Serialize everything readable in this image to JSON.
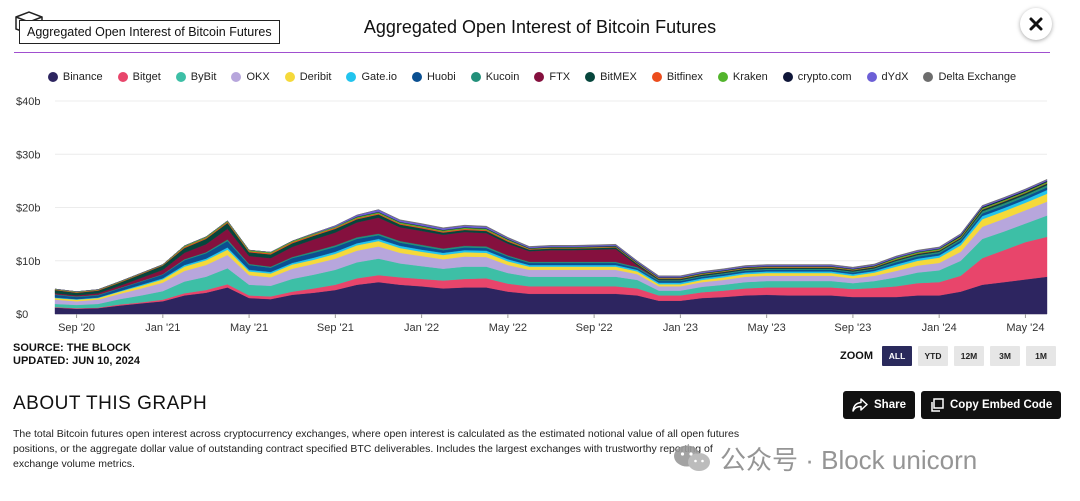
{
  "header": {
    "embed_label": "Aggregated Open Interest of Bitcoin Futures",
    "title": "Aggregated Open Interest of Bitcoin Futures"
  },
  "chart_data": {
    "type": "area",
    "stacked": true,
    "title": "Aggregated Open Interest of Bitcoin Futures",
    "ylim": [
      0,
      40
    ],
    "y_unit": "b (USD billions)",
    "y_ticks": [
      "$0",
      "$10b",
      "$20b",
      "$30b",
      "$40b"
    ],
    "x_tick_labels": [
      "Sep '20",
      "Jan '21",
      "May '21",
      "Sep '21",
      "Jan '22",
      "May '22",
      "Sep '22",
      "Jan '23",
      "May '23",
      "Sep '23",
      "Jan '24",
      "May '24"
    ],
    "grid": true,
    "legend_position": "top",
    "x": [
      "2020-08",
      "2020-09",
      "2020-10",
      "2020-11",
      "2020-12",
      "2021-01",
      "2021-02",
      "2021-03",
      "2021-04",
      "2021-05",
      "2021-06",
      "2021-07",
      "2021-08",
      "2021-09",
      "2021-10",
      "2021-11",
      "2021-12",
      "2022-01",
      "2022-02",
      "2022-03",
      "2022-04",
      "2022-05",
      "2022-06",
      "2022-07",
      "2022-08",
      "2022-09",
      "2022-10",
      "2022-11",
      "2022-12",
      "2023-01",
      "2023-02",
      "2023-03",
      "2023-04",
      "2023-05",
      "2023-06",
      "2023-07",
      "2023-08",
      "2023-09",
      "2023-10",
      "2023-11",
      "2023-12",
      "2024-01",
      "2024-02",
      "2024-03",
      "2024-04",
      "2024-05",
      "2024-06"
    ],
    "series": [
      {
        "name": "Binance",
        "color": "#2d2560",
        "values": [
          1.2,
          1.0,
          1.1,
          1.6,
          2.0,
          2.4,
          3.5,
          4.0,
          5.0,
          3.0,
          2.8,
          3.6,
          4.0,
          4.5,
          5.5,
          6.0,
          5.5,
          5.2,
          4.8,
          5.0,
          5.0,
          4.2,
          3.8,
          3.8,
          3.8,
          3.8,
          3.8,
          3.5,
          2.5,
          2.5,
          3.0,
          3.2,
          3.5,
          3.6,
          3.5,
          3.5,
          3.5,
          3.2,
          3.2,
          3.2,
          3.5,
          3.5,
          4.2,
          5.5,
          6.0,
          6.5,
          7.0
        ]
      },
      {
        "name": "Bitget",
        "color": "#e8456b",
        "values": [
          0.1,
          0.1,
          0.1,
          0.2,
          0.2,
          0.3,
          0.4,
          0.5,
          0.6,
          0.5,
          0.5,
          0.6,
          0.8,
          1.0,
          1.2,
          1.3,
          1.4,
          1.4,
          1.5,
          1.6,
          1.7,
          1.5,
          1.4,
          1.4,
          1.4,
          1.4,
          1.4,
          1.3,
          1.0,
          1.0,
          1.1,
          1.2,
          1.3,
          1.4,
          1.5,
          1.5,
          1.5,
          1.5,
          1.7,
          2.0,
          2.3,
          2.5,
          3.0,
          5.0,
          6.0,
          7.0,
          7.5
        ]
      },
      {
        "name": "ByBit",
        "color": "#3dbfa6",
        "values": [
          0.6,
          0.6,
          0.7,
          1.0,
          1.3,
          1.6,
          2.2,
          2.5,
          3.0,
          2.0,
          2.0,
          2.4,
          2.6,
          2.8,
          3.0,
          3.1,
          2.6,
          2.4,
          2.2,
          2.3,
          2.2,
          2.0,
          1.8,
          1.8,
          1.8,
          1.8,
          1.8,
          1.6,
          0.9,
          0.9,
          1.0,
          1.1,
          1.2,
          1.2,
          1.2,
          1.2,
          1.2,
          1.1,
          1.3,
          1.7,
          2.0,
          2.2,
          2.8,
          3.6,
          3.5,
          3.5,
          4.0
        ]
      },
      {
        "name": "OKX",
        "color": "#b7a6dc",
        "values": [
          0.8,
          0.7,
          0.8,
          1.0,
          1.3,
          1.6,
          2.0,
          2.2,
          2.5,
          1.8,
          1.6,
          1.9,
          2.0,
          2.1,
          2.2,
          2.3,
          2.0,
          1.9,
          1.8,
          1.9,
          1.8,
          1.5,
          1.3,
          1.3,
          1.3,
          1.3,
          1.3,
          1.1,
          0.8,
          0.8,
          0.9,
          0.9,
          1.0,
          1.0,
          1.0,
          1.0,
          1.0,
          0.9,
          1.0,
          1.2,
          1.3,
          1.4,
          1.7,
          2.3,
          2.4,
          2.5,
          2.6
        ]
      },
      {
        "name": "Deribit",
        "color": "#f5d93a",
        "values": [
          0.3,
          0.3,
          0.3,
          0.4,
          0.5,
          0.6,
          0.8,
          0.9,
          1.0,
          0.7,
          0.7,
          0.8,
          0.8,
          0.9,
          1.0,
          1.0,
          0.9,
          0.8,
          0.8,
          0.8,
          0.8,
          0.7,
          0.6,
          0.6,
          0.6,
          0.6,
          0.6,
          0.5,
          0.4,
          0.4,
          0.4,
          0.5,
          0.5,
          0.5,
          0.5,
          0.5,
          0.5,
          0.5,
          0.6,
          0.8,
          0.9,
          1.0,
          1.2,
          1.4,
          1.4,
          1.4,
          1.5
        ]
      },
      {
        "name": "Gate.io",
        "color": "#22c4ee",
        "values": [
          0.1,
          0.1,
          0.1,
          0.1,
          0.2,
          0.2,
          0.3,
          0.3,
          0.4,
          0.3,
          0.3,
          0.3,
          0.4,
          0.4,
          0.4,
          0.4,
          0.4,
          0.4,
          0.4,
          0.4,
          0.4,
          0.4,
          0.3,
          0.3,
          0.3,
          0.3,
          0.3,
          0.3,
          0.3,
          0.3,
          0.3,
          0.3,
          0.3,
          0.3,
          0.3,
          0.3,
          0.3,
          0.3,
          0.3,
          0.4,
          0.4,
          0.4,
          0.5,
          0.6,
          0.6,
          0.6,
          0.7
        ]
      },
      {
        "name": "Huobi",
        "color": "#0a4f91",
        "values": [
          0.5,
          0.4,
          0.4,
          0.5,
          0.6,
          0.7,
          0.9,
          1.0,
          1.2,
          0.9,
          0.8,
          0.9,
          0.9,
          0.9,
          0.8,
          0.7,
          0.6,
          0.6,
          0.5,
          0.5,
          0.5,
          0.5,
          0.4,
          0.4,
          0.4,
          0.4,
          0.4,
          0.3,
          0.3,
          0.3,
          0.3,
          0.3,
          0.3,
          0.3,
          0.3,
          0.3,
          0.3,
          0.3,
          0.3,
          0.4,
          0.4,
          0.4,
          0.4,
          0.5,
          0.5,
          0.5,
          0.5
        ]
      },
      {
        "name": "Kucoin",
        "color": "#22907a",
        "values": [
          0.1,
          0.1,
          0.1,
          0.1,
          0.1,
          0.1,
          0.2,
          0.2,
          0.3,
          0.2,
          0.2,
          0.2,
          0.3,
          0.3,
          0.3,
          0.3,
          0.3,
          0.3,
          0.3,
          0.3,
          0.3,
          0.2,
          0.2,
          0.2,
          0.2,
          0.2,
          0.2,
          0.2,
          0.2,
          0.2,
          0.2,
          0.2,
          0.2,
          0.2,
          0.2,
          0.2,
          0.2,
          0.2,
          0.2,
          0.3,
          0.3,
          0.3,
          0.3,
          0.4,
          0.4,
          0.4,
          0.4
        ]
      },
      {
        "name": "FTX",
        "color": "#85103e",
        "values": [
          0.2,
          0.2,
          0.3,
          0.4,
          0.6,
          0.8,
          1.2,
          1.5,
          2.0,
          1.5,
          1.6,
          1.9,
          2.2,
          2.4,
          2.8,
          3.0,
          2.6,
          2.6,
          2.6,
          2.6,
          2.5,
          2.2,
          2.0,
          2.2,
          2.2,
          2.3,
          2.4,
          0.3,
          0.0,
          0.0,
          0.0,
          0.0,
          0.0,
          0.0,
          0.0,
          0.0,
          0.0,
          0.0,
          0.0,
          0.0,
          0.0,
          0.0,
          0.0,
          0.0,
          0.0,
          0.0,
          0.0
        ]
      },
      {
        "name": "BitMEX",
        "color": "#06463c",
        "values": [
          0.6,
          0.5,
          0.5,
          0.6,
          0.7,
          0.8,
          0.9,
          1.0,
          1.1,
          0.7,
          0.7,
          0.7,
          0.7,
          0.7,
          0.6,
          0.6,
          0.5,
          0.5,
          0.4,
          0.4,
          0.4,
          0.4,
          0.3,
          0.3,
          0.3,
          0.3,
          0.3,
          0.3,
          0.2,
          0.2,
          0.2,
          0.2,
          0.2,
          0.2,
          0.2,
          0.2,
          0.2,
          0.2,
          0.2,
          0.2,
          0.2,
          0.2,
          0.2,
          0.3,
          0.3,
          0.3,
          0.3
        ]
      },
      {
        "name": "Bitfinex",
        "color": "#ec4d1d",
        "values": [
          0.1,
          0.1,
          0.1,
          0.1,
          0.1,
          0.1,
          0.2,
          0.2,
          0.2,
          0.2,
          0.2,
          0.2,
          0.2,
          0.2,
          0.2,
          0.2,
          0.2,
          0.2,
          0.2,
          0.2,
          0.2,
          0.2,
          0.1,
          0.1,
          0.1,
          0.1,
          0.1,
          0.1,
          0.1,
          0.1,
          0.1,
          0.1,
          0.1,
          0.1,
          0.1,
          0.1,
          0.1,
          0.1,
          0.1,
          0.1,
          0.1,
          0.1,
          0.1,
          0.1,
          0.1,
          0.1,
          0.1
        ]
      },
      {
        "name": "Kraken",
        "color": "#52b42c",
        "values": [
          0.1,
          0.1,
          0.1,
          0.1,
          0.1,
          0.1,
          0.2,
          0.2,
          0.2,
          0.2,
          0.2,
          0.2,
          0.2,
          0.2,
          0.2,
          0.2,
          0.2,
          0.2,
          0.2,
          0.2,
          0.2,
          0.2,
          0.1,
          0.1,
          0.1,
          0.1,
          0.1,
          0.1,
          0.1,
          0.1,
          0.1,
          0.1,
          0.1,
          0.1,
          0.1,
          0.1,
          0.1,
          0.1,
          0.1,
          0.2,
          0.2,
          0.2,
          0.2,
          0.2,
          0.2,
          0.2,
          0.2
        ]
      },
      {
        "name": "crypto.com",
        "color": "#0f1638",
        "values": [
          0.0,
          0.0,
          0.0,
          0.0,
          0.0,
          0.0,
          0.0,
          0.0,
          0.0,
          0.0,
          0.0,
          0.0,
          0.0,
          0.0,
          0.1,
          0.1,
          0.1,
          0.1,
          0.1,
          0.1,
          0.1,
          0.1,
          0.1,
          0.1,
          0.1,
          0.1,
          0.1,
          0.1,
          0.1,
          0.1,
          0.1,
          0.1,
          0.1,
          0.1,
          0.1,
          0.1,
          0.1,
          0.1,
          0.1,
          0.1,
          0.1,
          0.1,
          0.2,
          0.2,
          0.2,
          0.2,
          0.2
        ]
      },
      {
        "name": "dYdX",
        "color": "#6c5fd6",
        "values": [
          0.0,
          0.0,
          0.0,
          0.0,
          0.0,
          0.0,
          0.0,
          0.0,
          0.0,
          0.0,
          0.0,
          0.0,
          0.1,
          0.2,
          0.3,
          0.4,
          0.3,
          0.3,
          0.3,
          0.3,
          0.3,
          0.2,
          0.2,
          0.2,
          0.2,
          0.2,
          0.2,
          0.2,
          0.2,
          0.2,
          0.2,
          0.2,
          0.2,
          0.2,
          0.2,
          0.2,
          0.2,
          0.2,
          0.2,
          0.2,
          0.2,
          0.2,
          0.2,
          0.2,
          0.2,
          0.2,
          0.2
        ]
      },
      {
        "name": "Delta Exchange",
        "color": "#6d6d6d",
        "values": [
          0.0,
          0.0,
          0.0,
          0.0,
          0.0,
          0.0,
          0.0,
          0.0,
          0.0,
          0.0,
          0.0,
          0.0,
          0.0,
          0.0,
          0.0,
          0.0,
          0.1,
          0.1,
          0.1,
          0.1,
          0.1,
          0.1,
          0.1,
          0.1,
          0.1,
          0.1,
          0.1,
          0.1,
          0.1,
          0.1,
          0.1,
          0.1,
          0.1,
          0.1,
          0.1,
          0.1,
          0.1,
          0.1,
          0.1,
          0.1,
          0.1,
          0.1,
          0.1,
          0.1,
          0.1,
          0.1,
          0.1
        ]
      }
    ]
  },
  "footer": {
    "source_line": "SOURCE: THE BLOCK",
    "updated_line": "UPDATED: JUN 10, 2024"
  },
  "zoom": {
    "label": "ZOOM",
    "options": [
      "ALL",
      "YTD",
      "12M",
      "3M",
      "1M"
    ],
    "selected": "ALL"
  },
  "about": {
    "title": "ABOUT THIS GRAPH",
    "text": "The total Bitcoin futures open interest across cryptocurrency exchanges, where open interest is calculated as the estimated notional value of all open futures positions, or the aggregate dollar value of outstanding contract specified BTC deliverables. Includes the largest exchanges with trustworthy reporting of exchange volume metrics.",
    "share_label": "Share",
    "embed_label": "Copy Embed Code"
  },
  "watermark": {
    "text": "公众号 · Block unicorn"
  },
  "icons": {
    "logo": "block-logo-icon",
    "close": "close-icon",
    "share": "share-arrow-icon",
    "embed": "copy-icon",
    "watermark": "wechat-icon"
  }
}
